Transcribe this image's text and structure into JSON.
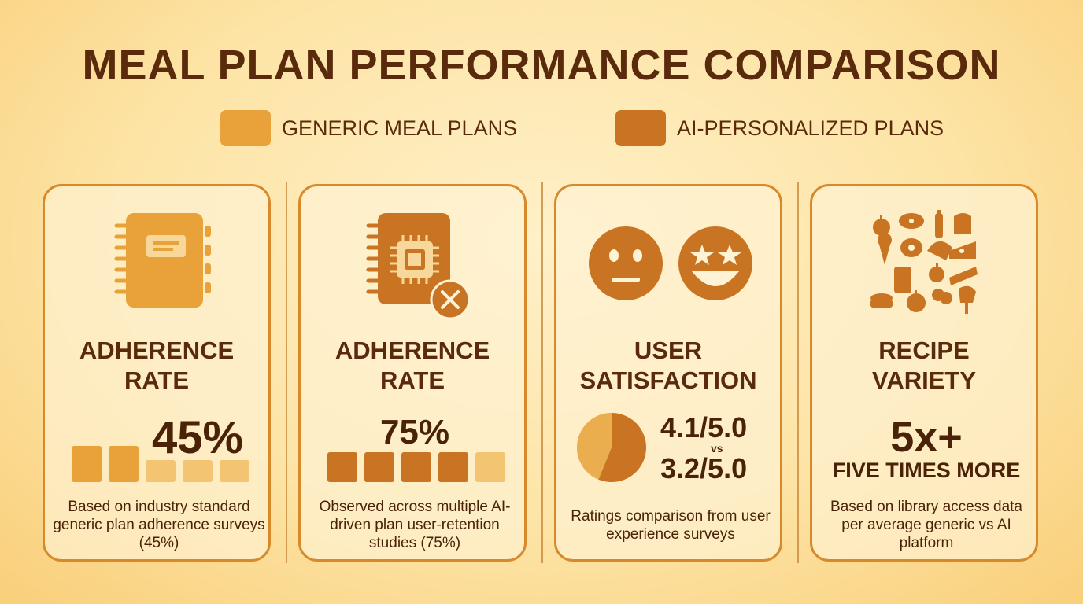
{
  "title": "MEAL PLAN PERFORMANCE COMPARISON",
  "legend": [
    {
      "label": "GENERIC MEAL PLANS",
      "color": "#e9a23a"
    },
    {
      "label": "AI-PERSONALIZED PLANS",
      "color": "#c97422"
    }
  ],
  "chart_data": [
    {
      "type": "bar",
      "title": "ADHERENCE RATE",
      "series_name": "GENERIC MEAL PLANS",
      "value_label": "45%",
      "value": 45,
      "segments_filled": 2,
      "segments_total": 5,
      "note": "Based on industry standard generic plan adherence surveys (45%)"
    },
    {
      "type": "bar",
      "title": "ADHERENCE RATE",
      "series_name": "AI-PERSONALIZED PLANS",
      "value_label": "75%",
      "value": 75,
      "segments_filled": 4,
      "segments_total": 5,
      "note": "Observed across multiple AI-driven plan user-retention studies (75%)"
    },
    {
      "type": "pie",
      "title": "USER SATISFACTION",
      "values": [
        4.1,
        3.2
      ],
      "value_labels": [
        "4.1/5.0",
        "3.2/5.0"
      ],
      "vs_label": "vs",
      "note": "Ratings comparison from user experience surveys"
    },
    {
      "type": "table",
      "title": "RECIPE VARIETY",
      "value_label": "5x+",
      "sub_label": "FIVE TIMES MORE",
      "note": "Based on library access data per average generic vs AI platform"
    }
  ],
  "cards": [
    {
      "title_lines": [
        "ADHERENCE",
        "RATE"
      ],
      "icon": "notebook-icon"
    },
    {
      "title_lines": [
        "ADHERENCE",
        "RATE"
      ],
      "icon": "ai-chip-notebook-icon"
    },
    {
      "title_lines": [
        "USER",
        "SATISFACTION"
      ],
      "icon": "faces-icon"
    },
    {
      "title_lines": [
        "RECIPE",
        "VARIETY"
      ],
      "icon": "food-grid-icon"
    }
  ],
  "colors": {
    "filled_light": "#e9a23a",
    "filled_dark": "#c97422",
    "empty": "#f3c572",
    "text": "#4a2208"
  }
}
